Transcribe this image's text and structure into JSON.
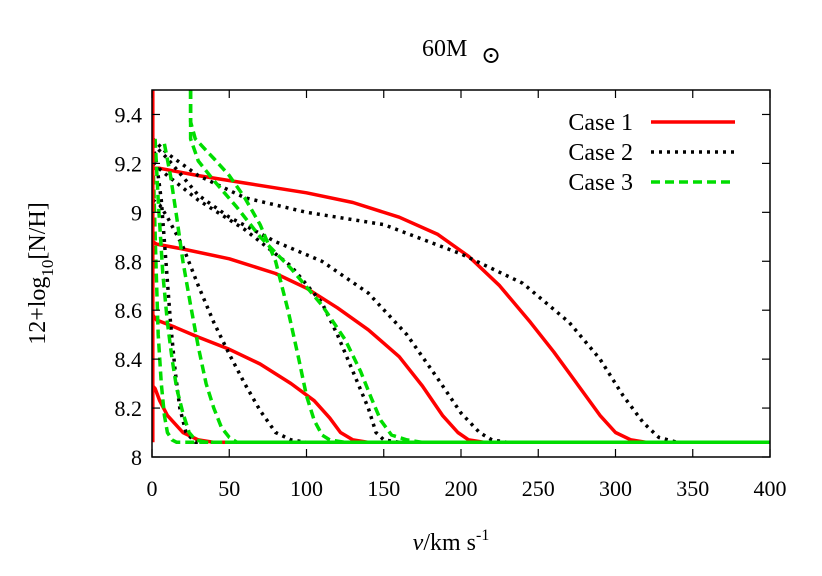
{
  "chart_data": {
    "type": "line",
    "title_main": "60M",
    "title_sub": "⊙",
    "xlabel_italic": "v",
    "xlabel_rest": "/km s",
    "xlabel_sup": "-1",
    "ylabel_pre": "12+log",
    "ylabel_sub": "10",
    "ylabel_post": "[N/H]",
    "xlim": [
      0,
      400
    ],
    "ylim": [
      8.0,
      9.5
    ],
    "xticks": [
      0,
      50,
      100,
      150,
      200,
      250,
      300,
      350,
      400
    ],
    "xtick_labels": [
      "0",
      "50",
      "100",
      "150",
      "200",
      "250",
      "300",
      "350",
      "400"
    ],
    "yticks": [
      8.0,
      8.2,
      8.4,
      8.6,
      8.8,
      9.0,
      9.2,
      9.4
    ],
    "ytick_labels": [
      "8",
      "8.2",
      "8.4",
      "8.6",
      "8.8",
      "9",
      "9.2",
      "9.4"
    ],
    "grid": false,
    "legend_position": "top-right",
    "colors": {
      "case1": "#ff0000",
      "case2": "#000000",
      "case3": "#00dd00"
    },
    "legend": [
      {
        "label": "Case 1",
        "color": "#ff0000",
        "dash": "solid"
      },
      {
        "label": "Case 2",
        "color": "#000000",
        "dash": "dotted"
      },
      {
        "label": "Case 3",
        "color": "#00dd00",
        "dash": "dashed"
      }
    ],
    "series": [
      {
        "name": "Case 1",
        "color": "#ff0000",
        "dash": "solid",
        "points": [
          [
            0.5,
            8.29
          ],
          [
            2,
            8.28
          ],
          [
            5,
            8.23
          ],
          [
            10,
            8.17
          ],
          [
            20,
            8.1
          ],
          [
            30,
            8.07
          ],
          [
            40,
            8.06
          ],
          [
            50,
            8.06
          ],
          [
            400,
            8.06
          ]
        ]
      },
      {
        "name": "Case 1",
        "color": "#ff0000",
        "dash": "solid",
        "points": [
          [
            0.5,
            8.58
          ],
          [
            3,
            8.56
          ],
          [
            15,
            8.53
          ],
          [
            30,
            8.49
          ],
          [
            50,
            8.44
          ],
          [
            70,
            8.38
          ],
          [
            90,
            8.3
          ],
          [
            105,
            8.23
          ],
          [
            115,
            8.16
          ],
          [
            122,
            8.1
          ],
          [
            130,
            8.07
          ],
          [
            140,
            8.06
          ],
          [
            400,
            8.06
          ]
        ]
      },
      {
        "name": "Case 1",
        "color": "#ff0000",
        "dash": "solid",
        "points": [
          [
            0.5,
            8.88
          ],
          [
            3,
            8.87
          ],
          [
            20,
            8.85
          ],
          [
            50,
            8.81
          ],
          [
            80,
            8.75
          ],
          [
            100,
            8.69
          ],
          [
            120,
            8.61
          ],
          [
            140,
            8.52
          ],
          [
            160,
            8.41
          ],
          [
            175,
            8.29
          ],
          [
            188,
            8.17
          ],
          [
            198,
            8.1
          ],
          [
            205,
            8.07
          ],
          [
            215,
            8.06
          ],
          [
            400,
            8.06
          ]
        ]
      },
      {
        "name": "Case 1",
        "color": "#ff0000",
        "dash": "solid",
        "points": [
          [
            0.5,
            9.18
          ],
          [
            5,
            9.18
          ],
          [
            30,
            9.15
          ],
          [
            60,
            9.12
          ],
          [
            100,
            9.08
          ],
          [
            130,
            9.04
          ],
          [
            160,
            8.98
          ],
          [
            185,
            8.91
          ],
          [
            205,
            8.82
          ],
          [
            225,
            8.7
          ],
          [
            245,
            8.55
          ],
          [
            260,
            8.43
          ],
          [
            275,
            8.3
          ],
          [
            290,
            8.17
          ],
          [
            300,
            8.1
          ],
          [
            310,
            8.07
          ],
          [
            320,
            8.06
          ],
          [
            400,
            8.06
          ]
        ]
      },
      {
        "name": "Case 2",
        "color": "#000000",
        "dash": "dotted",
        "points": [
          [
            0.5,
            9.28
          ],
          [
            3,
            9.2
          ],
          [
            6,
            9.05
          ],
          [
            9,
            8.8
          ],
          [
            12,
            8.55
          ],
          [
            15,
            8.35
          ],
          [
            18,
            8.2
          ],
          [
            22,
            8.1
          ],
          [
            28,
            8.06
          ],
          [
            400,
            8.06
          ]
        ]
      },
      {
        "name": "Case 2",
        "color": "#000000",
        "dash": "dotted",
        "points": [
          [
            0.5,
            9.05
          ],
          [
            5,
            9.03
          ],
          [
            10,
            8.98
          ],
          [
            20,
            8.86
          ],
          [
            30,
            8.7
          ],
          [
            40,
            8.55
          ],
          [
            50,
            8.42
          ],
          [
            60,
            8.3
          ],
          [
            70,
            8.19
          ],
          [
            80,
            8.1
          ],
          [
            90,
            8.07
          ],
          [
            100,
            8.06
          ],
          [
            400,
            8.06
          ]
        ]
      },
      {
        "name": "Case 2",
        "color": "#000000",
        "dash": "dotted",
        "points": [
          [
            0.5,
            9.2
          ],
          [
            10,
            9.15
          ],
          [
            30,
            9.05
          ],
          [
            60,
            8.93
          ],
          [
            90,
            8.78
          ],
          [
            110,
            8.63
          ],
          [
            120,
            8.5
          ],
          [
            130,
            8.35
          ],
          [
            140,
            8.2
          ],
          [
            145,
            8.1
          ],
          [
            150,
            8.07
          ],
          [
            160,
            8.06
          ],
          [
            400,
            8.06
          ]
        ]
      },
      {
        "name": "Case 2",
        "color": "#000000",
        "dash": "dotted",
        "points": [
          [
            0.5,
            9.28
          ],
          [
            10,
            9.22
          ],
          [
            30,
            9.07
          ],
          [
            50,
            8.98
          ],
          [
            80,
            8.88
          ],
          [
            110,
            8.8
          ],
          [
            140,
            8.67
          ],
          [
            165,
            8.5
          ],
          [
            185,
            8.32
          ],
          [
            200,
            8.18
          ],
          [
            212,
            8.1
          ],
          [
            220,
            8.07
          ],
          [
            230,
            8.06
          ],
          [
            400,
            8.06
          ]
        ]
      },
      {
        "name": "Case 2",
        "color": "#000000",
        "dash": "dotted",
        "points": [
          [
            0.5,
            9.3
          ],
          [
            10,
            9.24
          ],
          [
            30,
            9.15
          ],
          [
            60,
            9.06
          ],
          [
            100,
            9.0
          ],
          [
            150,
            8.95
          ],
          [
            200,
            8.83
          ],
          [
            240,
            8.71
          ],
          [
            270,
            8.55
          ],
          [
            290,
            8.4
          ],
          [
            305,
            8.25
          ],
          [
            318,
            8.14
          ],
          [
            328,
            8.08
          ],
          [
            340,
            8.06
          ],
          [
            400,
            8.06
          ]
        ]
      },
      {
        "name": "Case 3",
        "color": "#00dd00",
        "dash": "dashed",
        "points": [
          [
            1,
            9.15
          ],
          [
            2.5,
            8.8
          ],
          [
            4,
            8.5
          ],
          [
            6,
            8.3
          ],
          [
            8,
            8.17
          ],
          [
            10,
            8.1
          ],
          [
            13,
            8.07
          ],
          [
            16,
            8.06
          ],
          [
            400,
            8.06
          ]
        ]
      },
      {
        "name": "Case 3",
        "color": "#00dd00",
        "dash": "dashed",
        "points": [
          [
            2,
            9.3
          ],
          [
            4,
            9.05
          ],
          [
            7,
            8.75
          ],
          [
            10,
            8.55
          ],
          [
            13,
            8.4
          ],
          [
            16,
            8.28
          ],
          [
            20,
            8.18
          ],
          [
            24,
            8.1
          ],
          [
            28,
            8.07
          ],
          [
            35,
            8.06
          ],
          [
            400,
            8.06
          ]
        ]
      },
      {
        "name": "Case 3",
        "color": "#00dd00",
        "dash": "dashed",
        "points": [
          [
            8,
            9.28
          ],
          [
            12,
            9.15
          ],
          [
            16,
            8.98
          ],
          [
            20,
            8.8
          ],
          [
            25,
            8.62
          ],
          [
            30,
            8.45
          ],
          [
            35,
            8.3
          ],
          [
            40,
            8.2
          ],
          [
            45,
            8.12
          ],
          [
            50,
            8.08
          ],
          [
            55,
            8.06
          ],
          [
            400,
            8.06
          ]
        ]
      },
      {
        "name": "Case 3",
        "color": "#00dd00",
        "dash": "dashed",
        "points": [
          [
            25,
            9.5
          ],
          [
            25,
            9.37
          ],
          [
            28,
            9.3
          ],
          [
            40,
            9.22
          ],
          [
            50,
            9.15
          ],
          [
            60,
            9.06
          ],
          [
            70,
            8.95
          ],
          [
            80,
            8.8
          ],
          [
            88,
            8.6
          ],
          [
            95,
            8.4
          ],
          [
            100,
            8.25
          ],
          [
            105,
            8.15
          ],
          [
            110,
            8.09
          ],
          [
            115,
            8.07
          ],
          [
            125,
            8.06
          ],
          [
            400,
            8.06
          ]
        ]
      },
      {
        "name": "Case 3",
        "color": "#00dd00",
        "dash": "dashed",
        "points": [
          [
            25,
            9.5
          ],
          [
            25,
            9.3
          ],
          [
            30,
            9.21
          ],
          [
            40,
            9.13
          ],
          [
            55,
            9.02
          ],
          [
            70,
            8.9
          ],
          [
            90,
            8.77
          ],
          [
            110,
            8.62
          ],
          [
            125,
            8.48
          ],
          [
            135,
            8.35
          ],
          [
            142,
            8.24
          ],
          [
            148,
            8.15
          ],
          [
            155,
            8.09
          ],
          [
            165,
            8.07
          ],
          [
            175,
            8.06
          ],
          [
            400,
            8.06
          ]
        ]
      },
      {
        "name": "Case 1",
        "color": "#ff0000",
        "dash": "solid",
        "points": [
          [
            0.5,
            8.06
          ],
          [
            0.5,
            9.5
          ]
        ]
      }
    ]
  }
}
